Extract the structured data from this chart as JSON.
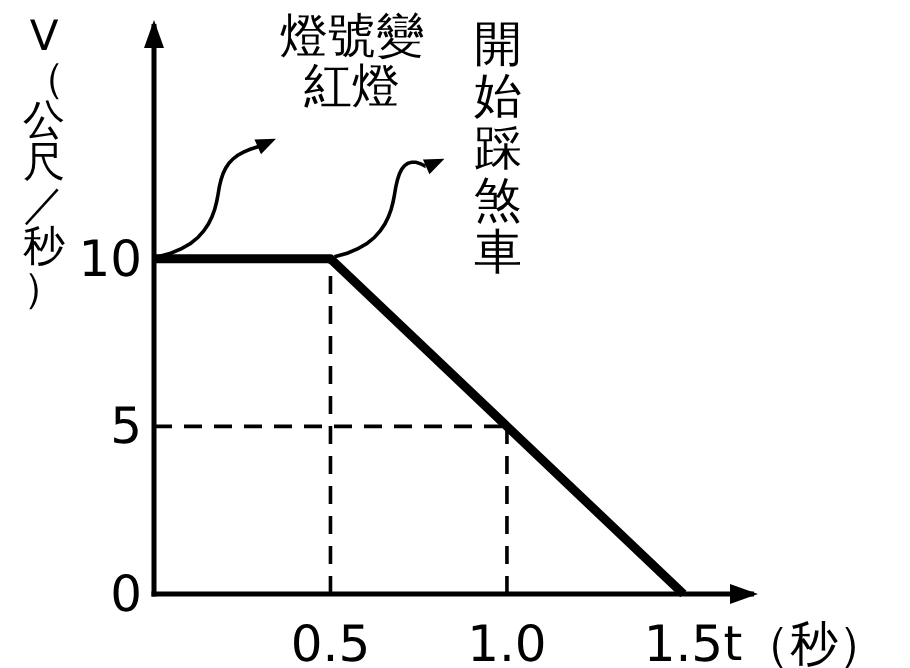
{
  "chart_data": {
    "type": "line",
    "xlabel": "t（秒）",
    "ylabel": "V（公尺／秒）",
    "xlim": [
      0,
      1.7
    ],
    "ylim": [
      0,
      17
    ],
    "xticks": [
      0.5,
      {
        "value": 1,
        "label": "1.0"
      },
      1.5
    ],
    "yticks": [
      0,
      5,
      10
    ],
    "marker": "none",
    "grid": false,
    "series": [
      {
        "color": "#000000",
        "x": [
          0,
          0.5,
          1.5
        ],
        "values": [
          10,
          10,
          0
        ],
        "line_style": "solid"
      },
      {
        "color": "#000000",
        "x": [
          0.5,
          0.5
        ],
        "values": [
          0,
          10
        ],
        "line_style": "dashed"
      },
      {
        "color": "#000000",
        "x": [
          1,
          1
        ],
        "values": [
          0,
          5
        ],
        "line_style": "dashed"
      },
      {
        "color": "#000000",
        "x": [
          0,
          1
        ],
        "values": [
          5,
          5
        ],
        "line_style": "dashed"
      }
    ],
    "annotations": [
      "燈號變紅燈",
      "開始踩煞車"
    ]
  }
}
